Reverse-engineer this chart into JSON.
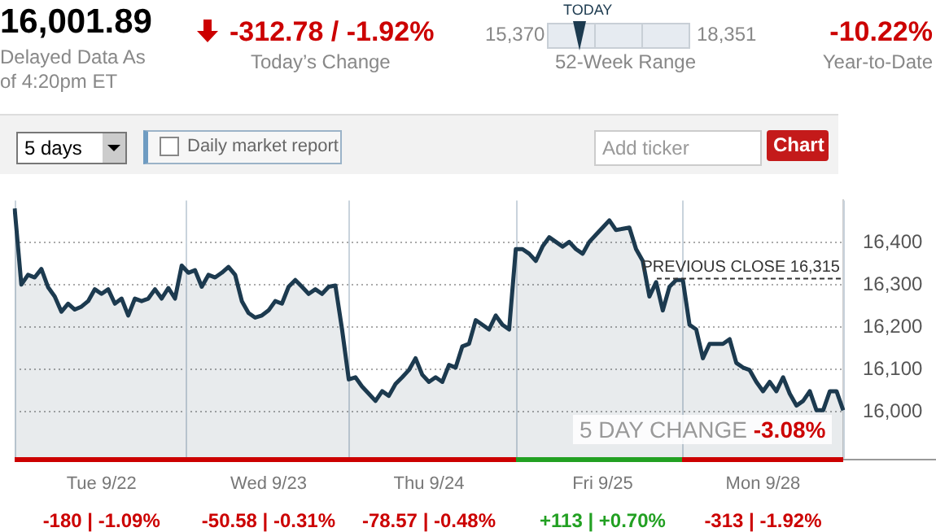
{
  "chart_data": {
    "type": "area",
    "title": "16,001.89",
    "subtitle": "Delayed Data As of 4:20pm ET",
    "annotations": [
      "-312.78 / -1.92%",
      "Today’s Change",
      "15,370",
      "TODAY",
      "18,351",
      "52-Week Range",
      "-10.22%",
      "Year-to-Date",
      "5 days",
      "Daily market report",
      "Add ticker",
      "Chart",
      "5 DAY CHANGE",
      "-3.08%",
      "-180 | -1.09%",
      "-50.58 | -0.31%",
      "-78.57 | -0.48%",
      "+113 | +0.70%",
      "-313 | -1.92%"
    ],
    "categories": [
      null,
      null,
      null,
      null,
      null,
      null,
      null,
      null,
      null,
      null,
      null,
      null,
      null,
      "Tue 9/22",
      null,
      null,
      null,
      null,
      null,
      null,
      null,
      null,
      null,
      null,
      null,
      null,
      null,
      null,
      null,
      null,
      null,
      null,
      null,
      null,
      null,
      null,
      null,
      null,
      "Wed 9/23",
      null,
      null,
      null,
      null,
      null,
      null,
      null,
      null,
      null,
      null,
      null,
      null,
      null,
      null,
      null,
      null,
      null,
      null,
      null,
      null,
      null,
      null,
      null,
      "Thu 9/24",
      null,
      null,
      null,
      null,
      null,
      null,
      null,
      null,
      null,
      null,
      null,
      null,
      null,
      null,
      null,
      null,
      null,
      null,
      null,
      null,
      null,
      null,
      null,
      null,
      null,
      "Fri 9/25",
      null,
      null,
      null,
      null,
      null,
      null,
      null,
      null,
      null,
      null,
      null,
      null,
      null,
      null,
      null,
      null,
      null,
      null,
      null,
      null,
      null,
      null,
      null,
      "Mon 9/28",
      null,
      null,
      null,
      null,
      null,
      null,
      null,
      null,
      null,
      null,
      null,
      null
    ],
    "ylim": [
      15890,
      16500
    ],
    "yticks": [
      {
        "value": 16000,
        "label": "16,000"
      },
      {
        "value": 16100,
        "label": "16,100"
      },
      {
        "value": 16200,
        "label": "16,200"
      },
      {
        "value": 16300,
        "label": "16,300"
      },
      {
        "value": 16400,
        "label": "16,400"
      }
    ],
    "grid": true,
    "legend": false,
    "ref_lines": [
      {
        "axis": "y",
        "value": 16315,
        "label": "PREVIOUS CLOSE 16,315",
        "color": "#333333",
        "line_style": "dashed"
      }
    ],
    "series": [
      {
        "color": "#1c3a4f",
        "values": [
          16481,
          16301,
          16324,
          16318,
          16338,
          16295,
          16273,
          16237,
          16256,
          16242,
          16249,
          16262,
          16290,
          16279,
          16290,
          16256,
          16268,
          16228,
          16268,
          16262,
          16268,
          16290,
          16268,
          16293,
          16268,
          16346,
          16329,
          16335,
          16296,
          16324,
          16318,
          16329,
          16343,
          16324,
          16262,
          16234,
          16223,
          16228,
          16240,
          16262,
          16256,
          16296,
          16312,
          16296,
          16279,
          16290,
          16279,
          16296,
          16299,
          16195,
          16077,
          16082,
          16060,
          16043,
          16026,
          16049,
          16038,
          16066,
          16082,
          16099,
          16127,
          16088,
          16071,
          16082,
          16071,
          16111,
          16105,
          16155,
          16161,
          16217,
          16206,
          16195,
          16228,
          16206,
          16195,
          16385,
          16385,
          16374,
          16357,
          16391,
          16413,
          16402,
          16391,
          16402,
          16385,
          16374,
          16402,
          16419,
          16436,
          16453,
          16430,
          16433,
          16436,
          16385,
          16357,
          16273,
          16307,
          16240,
          16296,
          16312,
          16312,
          16206,
          16195,
          16127,
          16161,
          16161,
          16161,
          16172,
          16116,
          16105,
          16099,
          16071,
          16049,
          16071,
          16049,
          16082,
          16043,
          16015,
          16026,
          16049,
          16004,
          16004,
          16049,
          16049,
          16004
        ]
      }
    ]
  }
}
